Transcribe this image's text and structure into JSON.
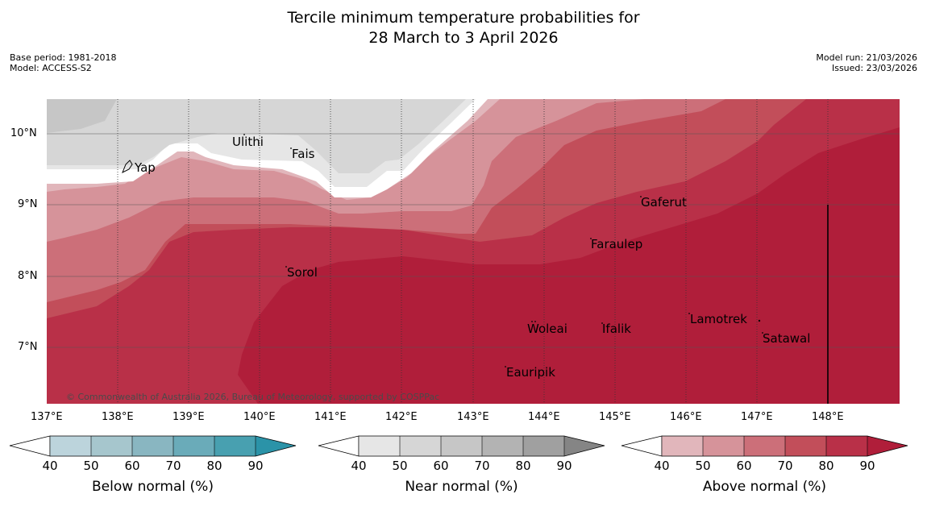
{
  "title": {
    "line1": "Tercile minimum temperature probabilities for",
    "line2": "28 March to 3 April 2026"
  },
  "meta": {
    "base_period": "Base period: 1981-2018",
    "model": "Model: ACCESS-S2",
    "model_run": "Model run: 21/03/2026",
    "issued": "Issued: 23/03/2026"
  },
  "map": {
    "lon_labels": [
      "137°E",
      "138°E",
      "139°E",
      "140°E",
      "141°E",
      "142°E",
      "143°E",
      "144°E",
      "145°E",
      "146°E",
      "147°E",
      "148°E"
    ],
    "lat_labels": [
      "10°N",
      "9°N",
      "8°N",
      "7°N"
    ],
    "places": [
      "Ulithi",
      "Fais",
      "Yap",
      "Gaferut",
      "Faraulep",
      "Sorol",
      "Woleai",
      "Ifalik",
      "Lamotrek",
      "Satawal",
      "Eauripik"
    ],
    "copyright": "© Commonwealth of Australia 2026, Bureau of Meteorology, supported by COSPPac"
  },
  "colorbars": [
    {
      "label": "Below normal (%)",
      "ticks": [
        "40",
        "50",
        "60",
        "70",
        "80",
        "90"
      ],
      "colors": [
        "#ffffff",
        "#bcd4dc",
        "#a6c6cd",
        "#89b6c1",
        "#6aabb9",
        "#48a0b0",
        "#2b93a8"
      ]
    },
    {
      "label": "Near normal (%)",
      "ticks": [
        "40",
        "50",
        "60",
        "70",
        "80",
        "90"
      ],
      "colors": [
        "#ffffff",
        "#e6e6e6",
        "#d6d6d6",
        "#c6c6c6",
        "#b3b3b3",
        "#a0a0a0",
        "#858585"
      ]
    },
    {
      "label": "Above normal (%)",
      "ticks": [
        "40",
        "50",
        "60",
        "70",
        "80",
        "90"
      ],
      "colors": [
        "#ffffff",
        "#e1b6bb",
        "#d6939a",
        "#cc6f79",
        "#c24e5a",
        "#b93048",
        "#b01e3a"
      ]
    }
  ]
}
